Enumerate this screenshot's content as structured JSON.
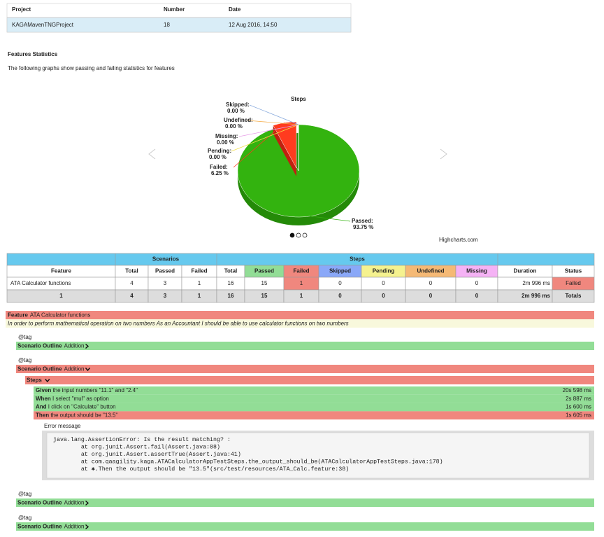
{
  "header_table": {
    "columns": [
      "Project",
      "Number",
      "Date"
    ],
    "rows": [
      [
        "KAGAMavenTNGProject",
        "18",
        "12 Aug 2016, 14:50"
      ]
    ]
  },
  "section": {
    "title": "Features Statistics",
    "description": "The following graphs show passing and failing statistics for features"
  },
  "chart_data": {
    "type": "pie",
    "title": "Steps",
    "categories": [
      "Passed:",
      "Failed:",
      "Pending:",
      "Missing:",
      "Undefined:",
      "Skipped:"
    ],
    "values": [
      93.75,
      6.25,
      0,
      0,
      0,
      0
    ],
    "value_labels": [
      "93.75 %",
      "6.25 %",
      "0.00 %",
      "0.00 %",
      "0.00 %",
      "0.00 %"
    ],
    "colors": [
      "#33b30f",
      "#ff3b1f",
      "#f2e04a",
      "#e79de7",
      "#f5b050",
      "#88aadd"
    ],
    "credit": "Highcharts.com"
  },
  "stats_table": {
    "groups": [
      "Scenarios",
      "Steps"
    ],
    "columns": [
      "Feature",
      "Total",
      "Passed",
      "Failed",
      "Total",
      "Passed",
      "Failed",
      "Skipped",
      "Pending",
      "Undefined",
      "Missing",
      "Duration",
      "Status"
    ],
    "rows": [
      [
        "ATA Calculator functions",
        4,
        3,
        1,
        16,
        15,
        1,
        0,
        0,
        0,
        0,
        "2m 996 ms",
        "Failed"
      ],
      [
        1,
        4,
        3,
        1,
        16,
        15,
        1,
        0,
        0,
        0,
        0,
        "2m 996 ms",
        "Totals"
      ]
    ]
  },
  "feature": {
    "keyword": "Feature",
    "name": "ATA Calculator functions",
    "description": "In order to perform mathematical operation on two numbers As an Accountant I should be able to use calculator functions on two numbers"
  },
  "scenarios": [
    {
      "tag": "@tag",
      "keyword": "Scenario Outline",
      "name": "Addition",
      "status": "passed"
    },
    {
      "tag": "@tag",
      "keyword": "Scenario Outline",
      "name": "Addition",
      "status": "failed",
      "steps_label": "Steps",
      "steps": [
        {
          "keyword": "Given",
          "text": " the input numbers \"11.1\" and \"2.4\"",
          "duration": "20s 598 ms",
          "status": "passed"
        },
        {
          "keyword": "When",
          "text": " I select \"mul\" as option",
          "duration": "2s 887 ms",
          "status": "passed"
        },
        {
          "keyword": "And",
          "text": " I click on \"Calculate\" button",
          "duration": "1s 600 ms",
          "status": "passed"
        },
        {
          "keyword": "Then",
          "text": " the output should be \"13.5\"",
          "duration": "1s 605 ms",
          "status": "failed"
        }
      ],
      "error_label": "Error message",
      "error_lines": [
        "java.lang.AssertionError: Is the result matching? :",
        "        at org.junit.Assert.fail(Assert.java:88)",
        "        at org.junit.Assert.assertTrue(Assert.java:41)",
        "        at com.qaagility.kaga.ATACalculatorAppTestSteps.the_output_should_be(ATACalculatorAppTestSteps.java:178)",
        "        at ✱.Then the output should be \"13.5\"(src/test/resources/ATA_Calc.feature:38)"
      ]
    },
    {
      "tag": "@tag",
      "keyword": "Scenario Outline",
      "name": "Addition",
      "status": "passed"
    },
    {
      "tag": "@tag",
      "keyword": "Scenario Outline",
      "name": "Addition",
      "status": "passed"
    }
  ]
}
